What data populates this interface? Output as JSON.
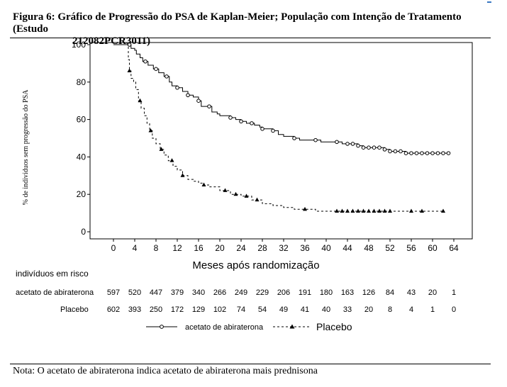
{
  "figure": {
    "title_line1": "Figura 6: Gráfico de Progressão do PSA de Kaplan-Meier; População com Intenção de Tratamento (Estudo",
    "title_line2": "212082PCR3011)",
    "note": "Nota: O acetato de abiraterona indica acetato de abiraterona mais prednisona"
  },
  "chart_data": {
    "type": "line",
    "title": "",
    "xlabel": "Meses após randomização",
    "ylabel": "% de indivíduos sem progressão do PSA",
    "xlim": [
      0,
      64
    ],
    "ylim": [
      0,
      100
    ],
    "x_ticks": [
      0,
      4,
      8,
      12,
      16,
      20,
      24,
      28,
      32,
      36,
      40,
      44,
      48,
      52,
      56,
      60,
      64
    ],
    "y_ticks": [
      0,
      20,
      40,
      60,
      80,
      100
    ],
    "step": true,
    "grid": false,
    "series": [
      {
        "name": "acetato de abiraterona",
        "style": "solid",
        "marker": "circle",
        "color": "#000000",
        "points": [
          [
            0,
            100
          ],
          [
            3,
            100
          ],
          [
            3.3,
            98
          ],
          [
            4,
            97
          ],
          [
            4.3,
            95
          ],
          [
            5,
            93
          ],
          [
            5.5,
            91
          ],
          [
            6.5,
            89
          ],
          [
            7.5,
            87
          ],
          [
            8.5,
            85
          ],
          [
            9.5,
            83
          ],
          [
            10.5,
            80
          ],
          [
            11,
            78
          ],
          [
            12,
            77
          ],
          [
            13,
            75
          ],
          [
            14,
            73
          ],
          [
            15,
            72
          ],
          [
            16,
            70
          ],
          [
            16.5,
            67
          ],
          [
            18,
            67
          ],
          [
            18.5,
            64
          ],
          [
            19.5,
            63
          ],
          [
            20,
            62
          ],
          [
            22,
            61
          ],
          [
            23,
            60
          ],
          [
            24,
            59
          ],
          [
            25,
            58
          ],
          [
            26.5,
            57
          ],
          [
            27.5,
            56
          ],
          [
            28,
            55
          ],
          [
            30,
            54
          ],
          [
            31,
            52
          ],
          [
            32,
            51
          ],
          [
            34,
            50
          ],
          [
            35,
            49
          ],
          [
            37,
            49
          ],
          [
            39,
            48
          ],
          [
            41,
            48
          ],
          [
            43,
            47
          ],
          [
            44,
            47
          ],
          [
            46,
            46
          ],
          [
            47,
            45
          ],
          [
            48,
            45
          ],
          [
            50,
            45
          ],
          [
            51,
            44
          ],
          [
            52,
            43
          ],
          [
            53,
            43
          ],
          [
            54,
            43
          ],
          [
            55,
            42
          ],
          [
            56,
            42
          ],
          [
            58,
            42
          ],
          [
            60,
            42
          ],
          [
            62,
            42
          ],
          [
            63,
            42
          ]
        ],
        "censor_x": [
          3,
          6,
          8,
          10,
          12,
          14,
          16,
          18,
          22,
          24,
          26,
          28,
          30,
          34,
          38,
          42,
          44,
          45,
          46,
          47,
          48,
          49,
          50,
          51,
          52,
          53,
          54,
          55,
          56,
          57,
          58,
          59,
          60,
          61,
          62,
          63
        ]
      },
      {
        "name": "Placebo",
        "style": "dashed",
        "marker": "triangle",
        "color": "#000000",
        "points": [
          [
            0,
            100
          ],
          [
            2.5,
            100
          ],
          [
            2.8,
            92
          ],
          [
            3,
            86
          ],
          [
            3.3,
            82
          ],
          [
            3.8,
            80
          ],
          [
            4.2,
            76
          ],
          [
            4.7,
            70
          ],
          [
            5.2,
            66
          ],
          [
            5.8,
            62
          ],
          [
            6.3,
            58
          ],
          [
            6.8,
            54
          ],
          [
            7.3,
            50
          ],
          [
            8,
            47
          ],
          [
            8.8,
            44
          ],
          [
            9.5,
            41
          ],
          [
            10.3,
            38
          ],
          [
            11.2,
            35
          ],
          [
            12,
            33
          ],
          [
            13,
            30
          ],
          [
            14,
            28
          ],
          [
            15,
            27
          ],
          [
            16,
            26
          ],
          [
            17,
            25
          ],
          [
            18,
            24
          ],
          [
            20,
            22
          ],
          [
            22,
            20
          ],
          [
            24,
            19
          ],
          [
            26,
            17
          ],
          [
            28,
            15
          ],
          [
            30,
            14
          ],
          [
            32,
            13
          ],
          [
            34,
            12
          ],
          [
            36,
            12
          ],
          [
            38,
            11
          ],
          [
            44,
            11
          ],
          [
            48,
            11
          ],
          [
            56,
            11
          ],
          [
            62,
            11
          ]
        ],
        "censor_x": [
          3,
          5,
          7,
          9,
          11,
          13,
          17,
          21,
          23,
          25,
          27,
          36,
          42,
          43,
          44,
          45,
          46,
          47,
          48,
          49,
          50,
          51,
          52,
          56,
          58,
          62
        ]
      }
    ],
    "risk_table": {
      "header": "indivíduos em risco",
      "times": [
        0,
        4,
        8,
        12,
        16,
        20,
        24,
        28,
        32,
        36,
        40,
        44,
        48,
        52,
        56,
        60,
        64
      ],
      "rows": [
        {
          "label": "acetato de abiraterona",
          "counts": [
            "597",
            "520",
            "447",
            "379",
            "340",
            "266",
            "249",
            "229",
            "206",
            "191",
            "180",
            "163",
            "126",
            "84",
            "43",
            "20",
            "1"
          ]
        },
        {
          "label": "Placebo",
          "counts": [
            "602",
            "393",
            "250",
            "172",
            "129",
            "102",
            "74",
            "54",
            "49",
            "41",
            "40",
            "33",
            "20",
            "8",
            "4",
            "1",
            "0"
          ]
        }
      ]
    },
    "legend": {
      "position": "bottom",
      "items": [
        {
          "label": "acetato de abiraterona",
          "style": "solid",
          "marker": "circle"
        },
        {
          "label": "Placebo",
          "style": "dashed",
          "marker": "triangle"
        }
      ]
    }
  }
}
